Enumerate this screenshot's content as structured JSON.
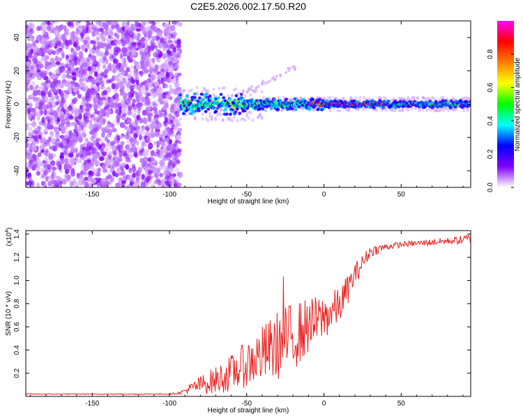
{
  "chart_data": [
    {
      "type": "heatmap",
      "title": "C2E5.2026.002.17.50.R20",
      "xlabel": "Height of straight line (km)",
      "ylabel": "Frequency (Hz)",
      "xlim": [
        -193,
        95
      ],
      "ylim": [
        -50,
        50
      ],
      "x_ticks": [
        -150,
        -100,
        -50,
        0,
        50
      ],
      "y_ticks": [
        -40,
        -20,
        0,
        20,
        40
      ],
      "noise_region_km": [
        -193,
        -93
      ],
      "ridge_frequency_hz": 0,
      "ridge_start_km": -93,
      "colorbar": {
        "label": "Normalized spectral amplitude",
        "range": [
          0.0,
          1.0
        ],
        "ticks": [
          0.0,
          0.2,
          0.4,
          0.6,
          0.8
        ],
        "colors": [
          "#ffffff",
          "#8000ff",
          "#0000ff",
          "#00ffff",
          "#00ff00",
          "#ffff00",
          "#ff8000",
          "#ff0000",
          "#ff00ff"
        ]
      }
    },
    {
      "type": "line",
      "xlabel": "Height of straight line (km)",
      "ylabel": "SNR (10 * v/v)",
      "y_multiplier_label": "(x10",
      "y_multiplier_exp": "4",
      "y_multiplier_close": ")",
      "xlim": [
        -193,
        95
      ],
      "ylim": [
        0.0,
        1.43
      ],
      "x_ticks": [
        -150,
        -100,
        -50,
        0,
        50
      ],
      "y_ticks": [
        0.2,
        0.4,
        0.6,
        0.8,
        1.0,
        1.2,
        1.4
      ],
      "color": "#e8201e",
      "series": [
        {
          "name": "SNR",
          "x": [
            -193,
            -140,
            -100,
            -93,
            -88,
            -80,
            -70,
            -60,
            -50,
            -40,
            -30,
            -20,
            -10,
            0,
            10,
            20,
            30,
            40,
            50,
            60,
            70,
            80,
            90,
            95
          ],
          "mean": [
            0.02,
            0.02,
            0.02,
            0.03,
            0.06,
            0.1,
            0.14,
            0.2,
            0.28,
            0.36,
            0.44,
            0.52,
            0.6,
            0.68,
            0.78,
            1.05,
            1.25,
            1.29,
            1.31,
            1.32,
            1.33,
            1.34,
            1.35,
            1.36
          ],
          "spread": [
            0.004,
            0.004,
            0.005,
            0.01,
            0.04,
            0.08,
            0.12,
            0.16,
            0.2,
            0.25,
            0.3,
            0.3,
            0.25,
            0.2,
            0.16,
            0.1,
            0.05,
            0.03,
            0.025,
            0.025,
            0.03,
            0.03,
            0.04,
            0.05
          ],
          "n_samples": 640
        }
      ]
    }
  ]
}
